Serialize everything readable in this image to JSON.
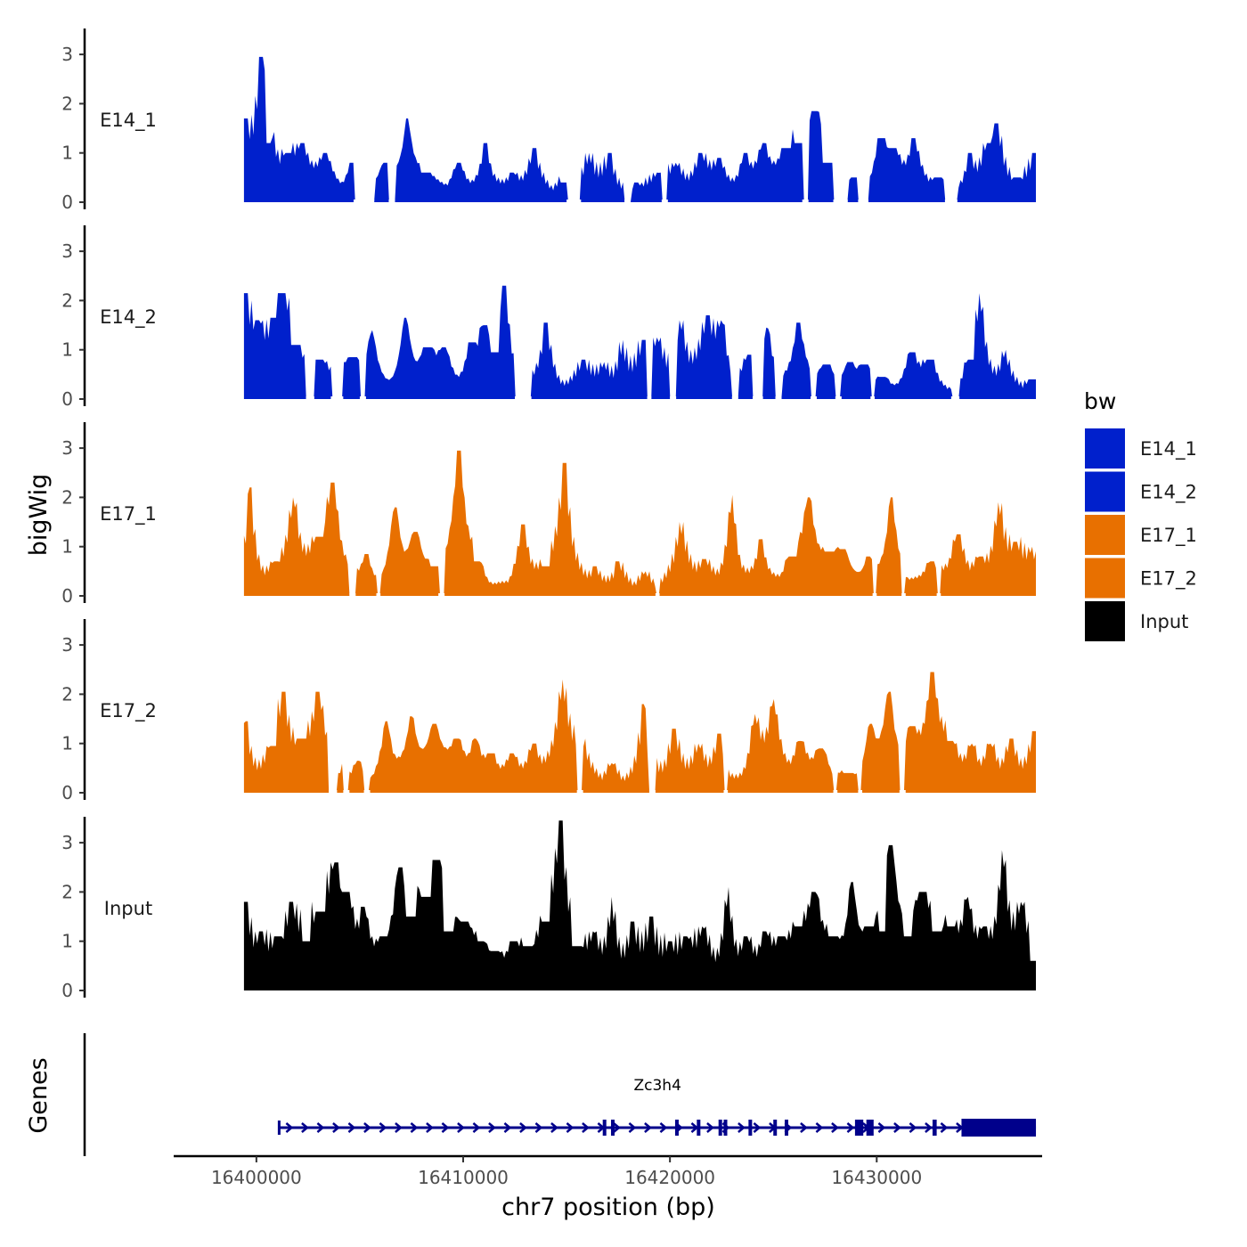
{
  "chart_data": {
    "type": "area",
    "xlabel": "chr7 position (bp)",
    "ylabel": "bigWig",
    "genes_label": "Genes",
    "xlim": [
      16396000,
      16438000
    ],
    "x_ticks": [
      {
        "value": 16400000,
        "label": "16400000"
      },
      {
        "value": 16410000,
        "label": "16410000"
      },
      {
        "value": 16420000,
        "label": "16420000"
      },
      {
        "value": 16430000,
        "label": "16430000"
      }
    ],
    "ylim": [
      0,
      3.5
    ],
    "y_ticks": [
      {
        "value": 0,
        "label": "0"
      },
      {
        "value": 1,
        "label": "1"
      },
      {
        "value": 2,
        "label": "2"
      },
      {
        "value": 3,
        "label": "3"
      }
    ],
    "signal_range": [
      16399400,
      16437700
    ],
    "series": [
      {
        "name": "E14_1",
        "color": "#0020CC",
        "peaks": [
          [
            16399450,
            1.7
          ],
          [
            16400250,
            2.95
          ],
          [
            16400500,
            1.2
          ],
          [
            16401500,
            1.0
          ],
          [
            16402200,
            1.2
          ],
          [
            16403300,
            1.0
          ],
          [
            16404600,
            0.8
          ],
          [
            16406200,
            0.8
          ],
          [
            16407300,
            1.7
          ],
          [
            16408200,
            0.6
          ],
          [
            16409800,
            0.8
          ],
          [
            16411100,
            1.2
          ],
          [
            16412400,
            0.6
          ],
          [
            16413400,
            1.1
          ],
          [
            16414900,
            0.4
          ],
          [
            16416100,
            1.0
          ],
          [
            16417100,
            1.0
          ],
          [
            16418400,
            0.4
          ],
          [
            16419400,
            0.6
          ],
          [
            16420300,
            0.8
          ],
          [
            16421500,
            1.0
          ],
          [
            16422400,
            0.9
          ],
          [
            16423600,
            1.0
          ],
          [
            16424500,
            1.2
          ],
          [
            16425600,
            1.1
          ],
          [
            16426200,
            1.2
          ],
          [
            16427000,
            1.85
          ],
          [
            16427600,
            0.8
          ],
          [
            16428900,
            0.5
          ],
          [
            16430200,
            1.3
          ],
          [
            16430800,
            1.1
          ],
          [
            16431800,
            1.3
          ],
          [
            16433000,
            0.5
          ],
          [
            16434500,
            1.0
          ],
          [
            16435400,
            1.2
          ],
          [
            16435800,
            1.6
          ],
          [
            16436800,
            0.5
          ],
          [
            16437600,
            1.0
          ]
        ],
        "gaps": [
          [
            16404700,
            16405700
          ],
          [
            16406400,
            16406700
          ],
          [
            16415000,
            16415700
          ],
          [
            16417800,
            16418100
          ],
          [
            16419600,
            16419900
          ],
          [
            16426400,
            16426700
          ],
          [
            16427900,
            16428600
          ],
          [
            16429100,
            16429600
          ],
          [
            16433300,
            16433900
          ]
        ]
      },
      {
        "name": "E14_2",
        "color": "#0020CC",
        "peaks": [
          [
            16399500,
            2.15
          ],
          [
            16400100,
            1.6
          ],
          [
            16400900,
            1.65
          ],
          [
            16401300,
            2.15
          ],
          [
            16401900,
            1.1
          ],
          [
            16403100,
            0.8
          ],
          [
            16404100,
            0.75
          ],
          [
            16404700,
            0.85
          ],
          [
            16405600,
            1.4
          ],
          [
            16407200,
            1.65
          ],
          [
            16408300,
            1.05
          ],
          [
            16409100,
            1.05
          ],
          [
            16410400,
            1.15
          ],
          [
            16411000,
            1.5
          ],
          [
            16411600,
            0.95
          ],
          [
            16412000,
            2.3
          ],
          [
            16414000,
            1.55
          ],
          [
            16415800,
            0.8
          ],
          [
            16416800,
            0.75
          ],
          [
            16417700,
            1.2
          ],
          [
            16418700,
            1.2
          ],
          [
            16419400,
            1.25
          ],
          [
            16420500,
            1.6
          ],
          [
            16421800,
            1.7
          ],
          [
            16422500,
            1.6
          ],
          [
            16423800,
            0.9
          ],
          [
            16424700,
            1.45
          ],
          [
            16426200,
            1.55
          ],
          [
            16427600,
            0.7
          ],
          [
            16428700,
            0.75
          ],
          [
            16429400,
            0.7
          ],
          [
            16430300,
            0.45
          ],
          [
            16431700,
            0.95
          ],
          [
            16432600,
            0.8
          ],
          [
            16434500,
            0.8
          ],
          [
            16435000,
            2.15
          ],
          [
            16436200,
            1.0
          ],
          [
            16437500,
            0.4
          ]
        ],
        "gaps": [
          [
            16402400,
            16402800
          ],
          [
            16403600,
            16404200
          ],
          [
            16405000,
            16405300
          ],
          [
            16412500,
            16413300
          ],
          [
            16418900,
            16419100
          ],
          [
            16420000,
            16420300
          ],
          [
            16423000,
            16423300
          ],
          [
            16424000,
            16424500
          ],
          [
            16425100,
            16425400
          ],
          [
            16426800,
            16427100
          ],
          [
            16428000,
            16428300
          ],
          [
            16429700,
            16429900
          ],
          [
            16433600,
            16434000
          ]
        ]
      },
      {
        "name": "E17_1",
        "color": "#E87000",
        "peaks": [
          [
            16399700,
            2.2
          ],
          [
            16400900,
            0.7
          ],
          [
            16401800,
            2.0
          ],
          [
            16403000,
            1.2
          ],
          [
            16403700,
            2.3
          ],
          [
            16405300,
            0.85
          ],
          [
            16406700,
            1.8
          ],
          [
            16407700,
            1.3
          ],
          [
            16408600,
            0.6
          ],
          [
            16409800,
            2.95
          ],
          [
            16410700,
            0.7
          ],
          [
            16412900,
            1.45
          ],
          [
            16414000,
            0.6
          ],
          [
            16414900,
            2.7
          ],
          [
            16416400,
            0.6
          ],
          [
            16417500,
            0.7
          ],
          [
            16418800,
            0.5
          ],
          [
            16420500,
            1.5
          ],
          [
            16421700,
            0.75
          ],
          [
            16423000,
            2.05
          ],
          [
            16424400,
            1.15
          ],
          [
            16425900,
            0.8
          ],
          [
            16426700,
            2.0
          ],
          [
            16427700,
            0.9
          ],
          [
            16428400,
            0.95
          ],
          [
            16429600,
            0.8
          ],
          [
            16430700,
            2.0
          ],
          [
            16432600,
            0.7
          ],
          [
            16433900,
            1.25
          ],
          [
            16435000,
            0.8
          ],
          [
            16435900,
            1.9
          ],
          [
            16436700,
            1.1
          ],
          [
            16437500,
            1.0
          ]
        ],
        "gaps": [
          [
            16404500,
            16404800
          ],
          [
            16405800,
            16406000
          ],
          [
            16408800,
            16409100
          ],
          [
            16419300,
            16419500
          ],
          [
            16429800,
            16430000
          ],
          [
            16431200,
            16431400
          ],
          [
            16432900,
            16433100
          ]
        ]
      },
      {
        "name": "E17_2",
        "color": "#E87000",
        "peaks": [
          [
            16399500,
            1.45
          ],
          [
            16400700,
            0.95
          ],
          [
            16401300,
            2.05
          ],
          [
            16402200,
            1.1
          ],
          [
            16403000,
            2.05
          ],
          [
            16403800,
            0.4
          ],
          [
            16404900,
            0.65
          ],
          [
            16406300,
            1.45
          ],
          [
            16407500,
            1.55
          ],
          [
            16408600,
            1.4
          ],
          [
            16409700,
            1.1
          ],
          [
            16410600,
            1.1
          ],
          [
            16411400,
            0.8
          ],
          [
            16412400,
            0.8
          ],
          [
            16413400,
            1.0
          ],
          [
            16414800,
            2.3
          ],
          [
            16415700,
            1.1
          ],
          [
            16417200,
            0.6
          ],
          [
            16418700,
            1.8
          ],
          [
            16420200,
            1.3
          ],
          [
            16421400,
            1.0
          ],
          [
            16422400,
            1.2
          ],
          [
            16424100,
            1.6
          ],
          [
            16425000,
            1.9
          ],
          [
            16426300,
            1.05
          ],
          [
            16427300,
            0.9
          ],
          [
            16428600,
            0.4
          ],
          [
            16429700,
            1.4
          ],
          [
            16430600,
            2.05
          ],
          [
            16431700,
            1.35
          ],
          [
            16432700,
            2.45
          ],
          [
            16433600,
            1.05
          ],
          [
            16434600,
            1.0
          ],
          [
            16435500,
            1.0
          ],
          [
            16436500,
            1.1
          ],
          [
            16437600,
            1.25
          ]
        ],
        "gaps": [
          [
            16403500,
            16403900
          ],
          [
            16404200,
            16404500
          ],
          [
            16405200,
            16405500
          ],
          [
            16415500,
            16415800
          ],
          [
            16419000,
            16419300
          ],
          [
            16422600,
            16422800
          ],
          [
            16427900,
            16428100
          ],
          [
            16429100,
            16429300
          ],
          [
            16431100,
            16431400
          ]
        ]
      },
      {
        "name": "Input",
        "color": "#000000",
        "peaks": [
          [
            16399500,
            1.8
          ],
          [
            16400200,
            1.2
          ],
          [
            16401000,
            1.1
          ],
          [
            16401700,
            1.8
          ],
          [
            16402400,
            1.0
          ],
          [
            16403100,
            1.6
          ],
          [
            16403800,
            2.6
          ],
          [
            16404400,
            2.0
          ],
          [
            16405200,
            1.7
          ],
          [
            16406100,
            1.1
          ],
          [
            16406900,
            2.5
          ],
          [
            16407500,
            1.5
          ],
          [
            16408200,
            1.9
          ],
          [
            16408700,
            2.65
          ],
          [
            16409300,
            1.2
          ],
          [
            16410100,
            1.4
          ],
          [
            16410900,
            1.0
          ],
          [
            16411600,
            0.8
          ],
          [
            16412400,
            1.0
          ],
          [
            16413100,
            0.9
          ],
          [
            16414000,
            1.4
          ],
          [
            16414700,
            3.45
          ],
          [
            16415500,
            0.9
          ],
          [
            16416300,
            1.2
          ],
          [
            16417200,
            1.9
          ],
          [
            16418200,
            1.4
          ],
          [
            16419100,
            1.5
          ],
          [
            16420000,
            1.0
          ],
          [
            16420800,
            1.1
          ],
          [
            16421600,
            1.3
          ],
          [
            16422800,
            2.1
          ],
          [
            16423700,
            1.1
          ],
          [
            16424600,
            1.2
          ],
          [
            16425400,
            1.1
          ],
          [
            16426200,
            1.3
          ],
          [
            16427000,
            2.0
          ],
          [
            16427900,
            1.1
          ],
          [
            16428800,
            2.2
          ],
          [
            16429600,
            1.3
          ],
          [
            16430300,
            1.2
          ],
          [
            16430700,
            2.95
          ],
          [
            16431500,
            1.1
          ],
          [
            16432200,
            2.0
          ],
          [
            16432900,
            1.2
          ],
          [
            16433600,
            1.3
          ],
          [
            16434400,
            1.9
          ],
          [
            16435200,
            1.3
          ],
          [
            16436100,
            2.85
          ],
          [
            16437000,
            1.8
          ],
          [
            16437600,
            0.6
          ]
        ],
        "gaps": []
      }
    ],
    "legend": {
      "title": "bw",
      "items": [
        {
          "name": "E14_1",
          "color": "#0020CC"
        },
        {
          "name": "E14_2",
          "color": "#0020CC"
        },
        {
          "name": "E17_1",
          "color": "#E87000"
        },
        {
          "name": "E17_2",
          "color": "#E87000"
        },
        {
          "name": "Input",
          "color": "#000000"
        }
      ]
    },
    "gene": {
      "name": "Zc3h4",
      "color": "#00008B",
      "start": 16401100,
      "end": 16437700,
      "strand": "+",
      "exons": [
        [
          16416750,
          16416900
        ],
        [
          16417150,
          16417300
        ],
        [
          16420250,
          16420400
        ],
        [
          16421300,
          16421400
        ],
        [
          16422350,
          16422450
        ],
        [
          16422600,
          16422700
        ],
        [
          16423800,
          16423900
        ],
        [
          16425000,
          16425100
        ],
        [
          16425550,
          16425650
        ],
        [
          16428950,
          16429350
        ],
        [
          16429500,
          16429850
        ],
        [
          16432700,
          16432900
        ],
        [
          16434100,
          16437700
        ]
      ]
    }
  }
}
